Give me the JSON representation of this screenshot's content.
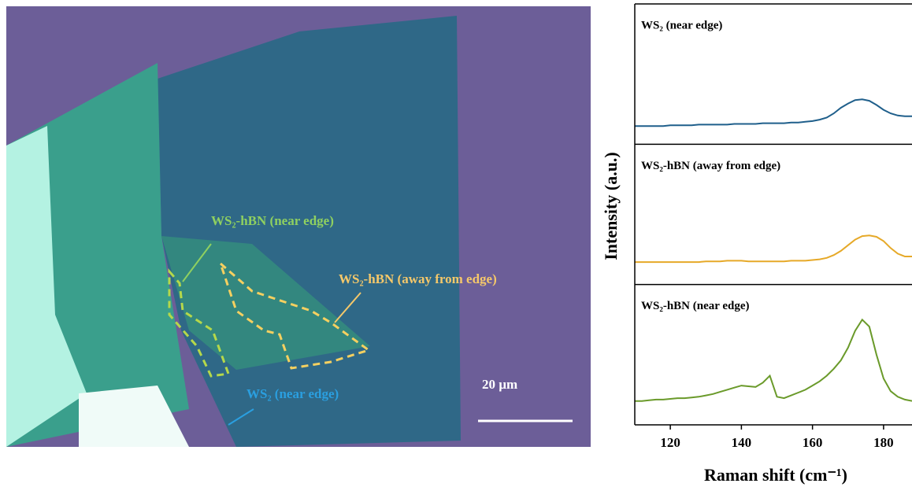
{
  "micrograph": {
    "labels": [
      "WS₂-hBN (near edge)",
      "WS₂-hBN (away from edge)",
      "WS₂ (near edge)"
    ],
    "scale_bar": "20 µm"
  },
  "chart_data": {
    "type": "line",
    "xlabel": "Raman shift (cm⁻¹)",
    "ylabel": "Intensity (a.u.)",
    "x": [
      110,
      112,
      114,
      116,
      118,
      120,
      122,
      124,
      126,
      128,
      130,
      132,
      134,
      136,
      138,
      140,
      142,
      144,
      146,
      148,
      150,
      152,
      154,
      156,
      158,
      160,
      162,
      164,
      166,
      168,
      170,
      172,
      174,
      176,
      178,
      180,
      182,
      184,
      186,
      188
    ],
    "xlim": [
      110,
      188
    ],
    "xticks": [
      120,
      140,
      160,
      180
    ],
    "panels": [
      {
        "title": "WS₂ (near edge)",
        "color": "#1f5f8b",
        "ylim": [
          0,
          1
        ],
        "values": [
          0.13,
          0.13,
          0.13,
          0.13,
          0.13,
          0.135,
          0.135,
          0.135,
          0.135,
          0.14,
          0.14,
          0.14,
          0.14,
          0.14,
          0.145,
          0.145,
          0.145,
          0.145,
          0.15,
          0.15,
          0.15,
          0.15,
          0.155,
          0.155,
          0.16,
          0.165,
          0.175,
          0.19,
          0.22,
          0.26,
          0.29,
          0.315,
          0.32,
          0.31,
          0.28,
          0.245,
          0.22,
          0.205,
          0.2,
          0.2
        ]
      },
      {
        "title": "WS₂-hBN (away from edge)",
        "color": "#e6a928",
        "ylim": [
          0,
          1
        ],
        "values": [
          0.16,
          0.16,
          0.16,
          0.16,
          0.16,
          0.16,
          0.16,
          0.16,
          0.16,
          0.16,
          0.165,
          0.165,
          0.165,
          0.17,
          0.17,
          0.17,
          0.165,
          0.165,
          0.165,
          0.165,
          0.165,
          0.165,
          0.17,
          0.17,
          0.17,
          0.175,
          0.18,
          0.19,
          0.21,
          0.24,
          0.28,
          0.32,
          0.345,
          0.35,
          0.34,
          0.31,
          0.26,
          0.22,
          0.2,
          0.2
        ]
      },
      {
        "title": "WS₂-hBN (near edge)",
        "color": "#6a9a2a",
        "ylim": [
          0,
          1
        ],
        "values": [
          0.17,
          0.17,
          0.175,
          0.18,
          0.18,
          0.185,
          0.19,
          0.19,
          0.195,
          0.2,
          0.21,
          0.22,
          0.235,
          0.25,
          0.265,
          0.28,
          0.275,
          0.27,
          0.3,
          0.35,
          0.2,
          0.19,
          0.21,
          0.23,
          0.25,
          0.28,
          0.31,
          0.35,
          0.4,
          0.46,
          0.55,
          0.67,
          0.75,
          0.7,
          0.5,
          0.33,
          0.24,
          0.2,
          0.18,
          0.17
        ]
      }
    ]
  }
}
